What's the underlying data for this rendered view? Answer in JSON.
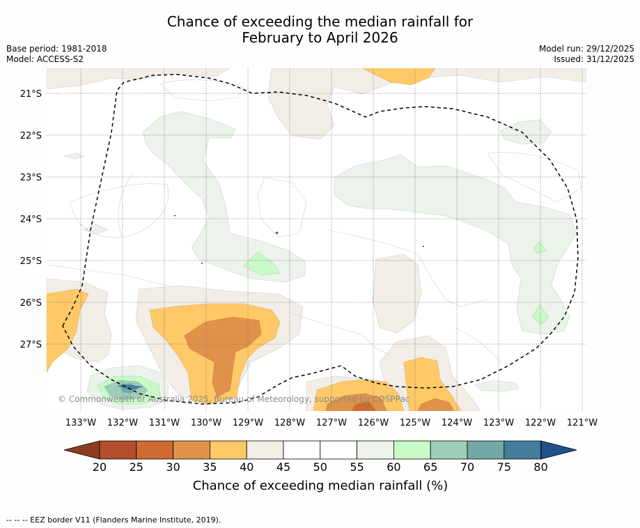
{
  "title": {
    "line1": "Chance of exceeding the median rainfall for",
    "line2": "February to April 2026"
  },
  "meta": {
    "base_period": "Base period: 1981-2018",
    "model": "Model: ACCESS-S2",
    "model_run": "Model run: 29/12/2025",
    "issued": "Issued: 31/12/2025"
  },
  "axes": {
    "lat_labels": [
      "21°S",
      "22°S",
      "23°S",
      "24°S",
      "25°S",
      "26°S",
      "27°S"
    ],
    "lon_labels": [
      "133°W",
      "132°W",
      "131°W",
      "130°W",
      "129°W",
      "128°W",
      "127°W",
      "126°W",
      "125°W",
      "124°W",
      "123°W",
      "122°W",
      "121°W"
    ]
  },
  "copyright": "© Commonwealth of Australia 2025, Bureau of Meteorology, supported by COSPPac",
  "colorbar": {
    "title": "Chance of exceeding median rainfall (%)",
    "labels": [
      "20",
      "25",
      "30",
      "35",
      "40",
      "45",
      "50",
      "55",
      "60",
      "65",
      "70",
      "75",
      "80"
    ],
    "colors": [
      "#b44e2c",
      "#cf6a33",
      "#e0924a",
      "#fec966",
      "#f2ede7",
      "#ffffff",
      "#ffffff",
      "#ebf3ea",
      "#c8fac8",
      "#9dcfb8",
      "#73a8a6",
      "#427d9c"
    ],
    "under_color": "#8e3b22",
    "over_color": "#21508a"
  },
  "footer": "-- -- -- EEZ border V11 (Flanders Marine Institute, 2019)."
}
